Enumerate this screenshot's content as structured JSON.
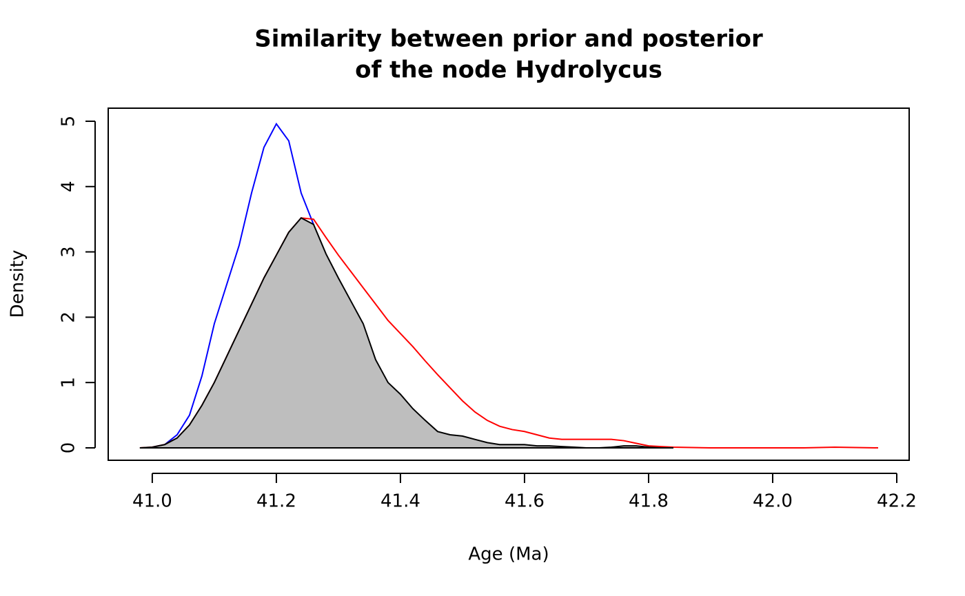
{
  "chart_data": {
    "type": "line",
    "title": [
      "Similarity between prior and posterior",
      "of the node Hydrolycus"
    ],
    "xlabel": "Age (Ma)",
    "ylabel": "Density",
    "xlim": [
      40.929,
      42.22
    ],
    "ylim": [
      -0.19,
      5.2
    ],
    "xticks": [
      {
        "value": 41.0,
        "label": "41.0"
      },
      {
        "value": 41.2,
        "label": "41.2"
      },
      {
        "value": 41.4,
        "label": "41.4"
      },
      {
        "value": 41.6,
        "label": "41.6"
      },
      {
        "value": 41.8,
        "label": "41.8"
      },
      {
        "value": 42.0,
        "label": "42.0"
      },
      {
        "value": 42.2,
        "label": "42.2"
      }
    ],
    "yticks": [
      0,
      1,
      2,
      3,
      4,
      5
    ],
    "series": [
      {
        "color": "#0000ff",
        "x": [
          41.0,
          41.02,
          41.04,
          41.06,
          41.08,
          41.1,
          41.12,
          41.14,
          41.16,
          41.18,
          41.2,
          41.22,
          41.24,
          41.26
        ],
        "values": [
          0.01,
          0.05,
          0.2,
          0.5,
          1.1,
          1.9,
          2.5,
          3.1,
          3.9,
          4.6,
          4.96,
          4.7,
          3.9,
          3.42
        ]
      },
      {
        "color": "#ff0000",
        "x": [
          40.98,
          41.0,
          41.02,
          41.04,
          41.06,
          41.08,
          41.1,
          41.12,
          41.14,
          41.16,
          41.18,
          41.2,
          41.22,
          41.24,
          41.26,
          41.28,
          41.3,
          41.32,
          41.34,
          41.36,
          41.38,
          41.4,
          41.42,
          41.44,
          41.46,
          41.48,
          41.5,
          41.52,
          41.54,
          41.56,
          41.58,
          41.6,
          41.62,
          41.64,
          41.66,
          41.68,
          41.7,
          41.72,
          41.74,
          41.76,
          41.78,
          41.8,
          41.82,
          41.84,
          41.9,
          42.0,
          42.05,
          42.1,
          42.17
        ],
        "values": [
          0,
          0.01,
          0.05,
          0.15,
          0.35,
          0.65,
          1.0,
          1.4,
          1.8,
          2.2,
          2.6,
          2.95,
          3.3,
          3.52,
          3.5,
          3.22,
          2.95,
          2.7,
          2.45,
          2.2,
          1.95,
          1.75,
          1.55,
          1.33,
          1.12,
          0.92,
          0.72,
          0.55,
          0.42,
          0.33,
          0.28,
          0.25,
          0.2,
          0.15,
          0.13,
          0.13,
          0.13,
          0.13,
          0.13,
          0.11,
          0.07,
          0.03,
          0.02,
          0.01,
          0,
          0,
          0,
          0.01,
          0
        ]
      },
      {
        "color": "#000000",
        "fill": "#bebebe",
        "x": [
          40.98,
          41.0,
          41.02,
          41.04,
          41.06,
          41.08,
          41.1,
          41.12,
          41.14,
          41.16,
          41.18,
          41.2,
          41.22,
          41.24,
          41.26,
          41.28,
          41.3,
          41.32,
          41.34,
          41.36,
          41.38,
          41.4,
          41.42,
          41.44,
          41.46,
          41.48,
          41.5,
          41.52,
          41.54,
          41.56,
          41.58,
          41.6,
          41.62,
          41.64,
          41.66,
          41.68,
          41.7,
          41.72,
          41.74,
          41.76,
          41.78,
          41.8,
          41.82,
          41.84
        ],
        "values": [
          0,
          0.01,
          0.05,
          0.15,
          0.35,
          0.65,
          1.0,
          1.4,
          1.8,
          2.2,
          2.6,
          2.95,
          3.3,
          3.52,
          3.42,
          2.97,
          2.6,
          2.25,
          1.9,
          1.35,
          1.0,
          0.82,
          0.6,
          0.42,
          0.25,
          0.2,
          0.18,
          0.13,
          0.08,
          0.05,
          0.05,
          0.05,
          0.03,
          0.03,
          0.02,
          0.01,
          0,
          0,
          0.01,
          0.03,
          0.03,
          0.01,
          0,
          0
        ]
      }
    ]
  }
}
